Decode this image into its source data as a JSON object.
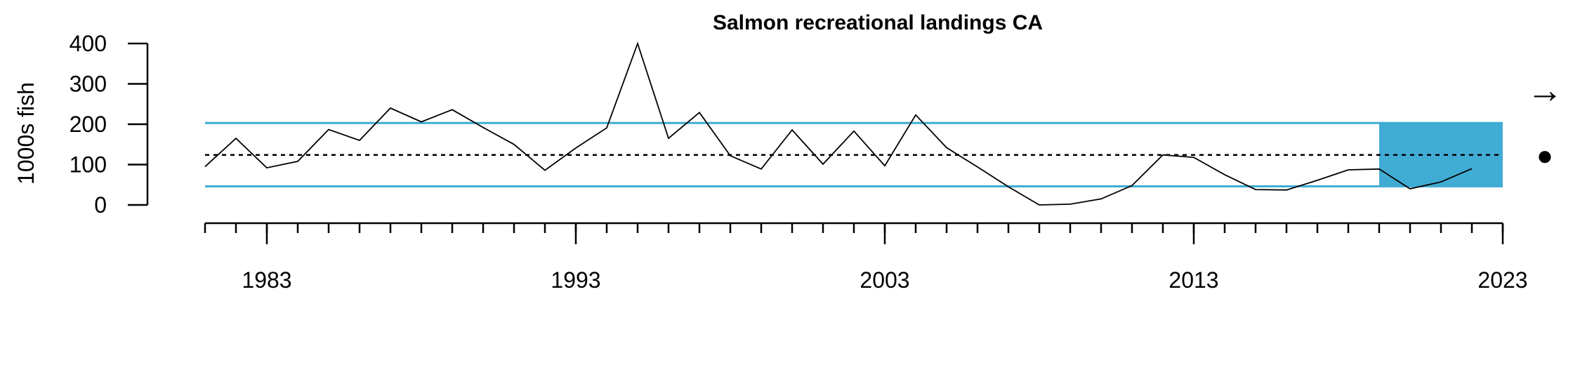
{
  "chart_data": {
    "type": "line",
    "title": "Salmon recreational landings CA",
    "xlabel": "",
    "ylabel": "1000s fish",
    "xlim": [
      1981,
      2023
    ],
    "ylim": [
      0,
      400
    ],
    "x_ticks_labeled": [
      1983,
      1993,
      2003,
      2013,
      2023
    ],
    "x_ticks_labels": [
      "1983",
      "1993",
      "2003",
      "2013",
      "2023"
    ],
    "x_minor_ticks": [
      1981,
      1982,
      1983,
      1984,
      1985,
      1986,
      1987,
      1988,
      1989,
      1990,
      1991,
      1992,
      1993,
      1994,
      1995,
      1996,
      1997,
      1998,
      1999,
      2000,
      2001,
      2002,
      2003,
      2004,
      2005,
      2006,
      2007,
      2008,
      2009,
      2010,
      2011,
      2012,
      2013,
      2014,
      2015,
      2016,
      2017,
      2018,
      2019,
      2020,
      2021,
      2022,
      2023
    ],
    "y_ticks": [
      0,
      100,
      200,
      300,
      400
    ],
    "y_ticks_labels": [
      "0",
      "100",
      "200",
      "300",
      "400"
    ],
    "grid": false,
    "series": [
      {
        "x": [
          1981,
          1982,
          1983,
          1984,
          1985,
          1986,
          1987,
          1988,
          1989,
          1990,
          1991,
          1992,
          1993,
          1994,
          1995,
          1996,
          1997,
          1998,
          1999,
          2000,
          2001,
          2002,
          2003,
          2004,
          2005,
          2006,
          2007,
          2008,
          2009,
          2010,
          2011,
          2012,
          2013,
          2014,
          2015,
          2016,
          2017,
          2018,
          2019,
          2020,
          2021,
          2022
        ],
        "values": [
          95,
          165,
          92,
          108,
          187,
          160,
          240,
          206,
          236,
          192,
          150,
          86,
          141,
          191,
          400,
          165,
          229,
          122,
          89,
          186,
          101,
          183,
          97,
          223,
          142,
          94,
          45,
          0,
          2,
          15,
          48,
          124,
          118,
          75,
          38,
          37,
          61,
          87,
          89,
          40,
          57,
          90
        ]
      }
    ],
    "reference_lines": {
      "mean": 124,
      "upper_sd": 203,
      "lower_sd": 46
    },
    "highlight_period": {
      "x_start": 2019,
      "x_end": 2023
    },
    "trend_symbol": "→",
    "mean_symbol": "●",
    "colors": {
      "line": "#000000",
      "sd_lines": "#41ACD3",
      "highlight": "#41ACD3",
      "mean_line": "#000000"
    }
  }
}
